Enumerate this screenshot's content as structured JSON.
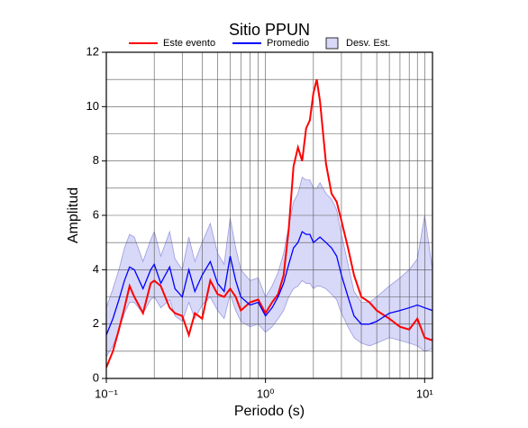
{
  "chart_data": {
    "type": "line",
    "title": "Sitio PPUN",
    "xlabel": "Periodo (s)",
    "ylabel": "Amplitud",
    "xscale": "log",
    "xlim": [
      0.1,
      11.2
    ],
    "ylim": [
      0,
      12
    ],
    "xticks": [
      {
        "value": 0.1,
        "label": "10⁻¹"
      },
      {
        "value": 1,
        "label": "10⁰"
      },
      {
        "value": 10,
        "label": "10¹"
      }
    ],
    "yticks": [
      0,
      2,
      4,
      6,
      8,
      10,
      12
    ],
    "xgrid": [
      0.2,
      0.3,
      0.4,
      0.5,
      0.6,
      0.7,
      0.8,
      0.9,
      1,
      2,
      3,
      4,
      5,
      6,
      7,
      8,
      9,
      10
    ],
    "ygrid": [
      1,
      2,
      3,
      4,
      5,
      6,
      7,
      8,
      9,
      10,
      11
    ],
    "grid": true,
    "legend": "top",
    "x": [
      0.1,
      0.11,
      0.12,
      0.13,
      0.14,
      0.15,
      0.17,
      0.19,
      0.2,
      0.22,
      0.25,
      0.27,
      0.3,
      0.33,
      0.36,
      0.4,
      0.45,
      0.5,
      0.55,
      0.6,
      0.65,
      0.7,
      0.8,
      0.9,
      1.0,
      1.1,
      1.2,
      1.3,
      1.4,
      1.5,
      1.6,
      1.7,
      1.8,
      1.9,
      2.0,
      2.1,
      2.2,
      2.4,
      2.6,
      2.8,
      3.0,
      3.3,
      3.6,
      4.0,
      4.5,
      5,
      6,
      7,
      8,
      9,
      10,
      11.2
    ],
    "band": {
      "name": "Desv. Est.",
      "color": "#d8d8f8",
      "edge": "#9a9ae0",
      "lower": [
        0.8,
        1.2,
        1.8,
        2.4,
        2.8,
        2.8,
        2.4,
        2.9,
        3.0,
        2.6,
        2.9,
        2.3,
        2.1,
        2.8,
        2.2,
        2.7,
        3.0,
        2.5,
        2.2,
        3.1,
        2.5,
        2.1,
        1.9,
        2.0,
        1.7,
        1.9,
        2.2,
        2.5,
        3.0,
        3.3,
        3.4,
        3.6,
        3.5,
        3.5,
        3.3,
        3.4,
        3.4,
        3.3,
        3.1,
        2.9,
        2.4,
        1.9,
        1.5,
        1.3,
        1.2,
        1.3,
        1.5,
        1.4,
        1.3,
        1.2,
        1.0,
        1.1
      ],
      "upper": [
        2.6,
        3.3,
        4.0,
        4.8,
        5.3,
        5.2,
        4.3,
        5.1,
        5.4,
        4.5,
        5.4,
        4.4,
        4.0,
        5.2,
        4.3,
        5.0,
        5.7,
        4.6,
        4.2,
        5.9,
        4.8,
        4.0,
        3.6,
        3.7,
        3.0,
        3.4,
        3.9,
        4.6,
        5.6,
        6.5,
        6.8,
        7.4,
        7.3,
        7.3,
        7.0,
        7.0,
        7.2,
        6.8,
        6.6,
        6.2,
        5.3,
        4.2,
        3.2,
        2.8,
        2.8,
        3.0,
        3.4,
        3.7,
        4.0,
        4.4,
        6.0,
        4.0
      ]
    },
    "series": [
      {
        "name": "Este evento",
        "color": "#ff0000",
        "values": [
          0.4,
          1.0,
          1.8,
          2.6,
          3.4,
          3.0,
          2.4,
          3.5,
          3.6,
          3.4,
          2.6,
          2.4,
          2.3,
          1.6,
          2.4,
          2.2,
          3.6,
          3.1,
          3.0,
          3.3,
          3.0,
          2.5,
          2.8,
          2.9,
          2.4,
          2.8,
          3.1,
          3.8,
          5.5,
          7.8,
          8.5,
          8.0,
          9.2,
          9.5,
          10.5,
          11.0,
          10.2,
          7.9,
          6.8,
          6.5,
          5.8,
          4.8,
          3.8,
          3.0,
          2.8,
          2.5,
          2.2,
          1.9,
          1.8,
          2.2,
          1.5,
          1.4
        ]
      },
      {
        "name": "Promedio",
        "color": "#0000ff",
        "values": [
          1.6,
          2.2,
          2.9,
          3.6,
          4.1,
          4.0,
          3.3,
          4.0,
          4.2,
          3.5,
          4.1,
          3.3,
          3.0,
          4.0,
          3.2,
          3.8,
          4.3,
          3.5,
          3.2,
          4.5,
          3.6,
          3.0,
          2.7,
          2.8,
          2.3,
          2.6,
          3.0,
          3.5,
          4.2,
          4.8,
          5.0,
          5.4,
          5.3,
          5.3,
          5.0,
          5.1,
          5.2,
          5.0,
          4.8,
          4.5,
          3.8,
          3.0,
          2.3,
          2.0,
          2.0,
          2.1,
          2.4,
          2.5,
          2.6,
          2.7,
          2.6,
          2.5
        ]
      }
    ]
  }
}
